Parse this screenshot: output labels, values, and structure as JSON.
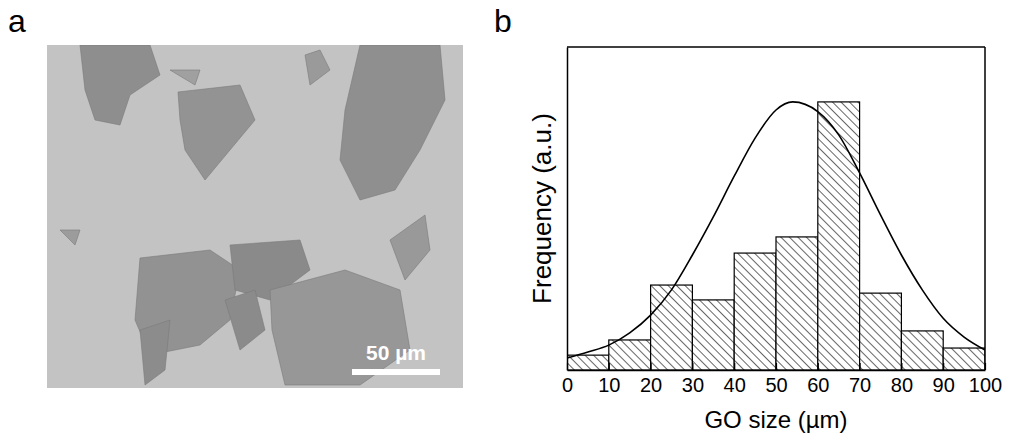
{
  "image_panel": {
    "panel_label": "a",
    "scale_bar": "50 µm"
  },
  "chart_data": {
    "type": "histogram",
    "panel_label": "b",
    "xlabel": "GO size (µm)",
    "ylabel": "Frequency (a.u.)",
    "bins": [
      0,
      10,
      20,
      30,
      40,
      50,
      60,
      70,
      80,
      90,
      100
    ],
    "values": [
      4.6,
      9.3,
      26.3,
      21.7,
      36.2,
      41.2,
      83,
      23.8,
      12.1,
      6.8
    ],
    "color": "#000000",
    "series": [
      {
        "type": "line",
        "color": "#000000",
        "x": [
          0,
          5,
          10,
          15,
          20,
          25,
          30,
          35,
          40,
          45,
          50,
          54,
          60,
          65,
          70,
          75,
          80,
          85,
          90,
          95,
          100
        ],
        "values": [
          3.7,
          5.6,
          7.7,
          11.5,
          17,
          24.8,
          35.6,
          47.4,
          60,
          71.8,
          80.5,
          83,
          80,
          72.8,
          61,
          48,
          35.6,
          24.8,
          16,
          10.2,
          6.2
        ]
      }
    ],
    "xlim": [
      0,
      100
    ],
    "xticks": [
      0,
      10,
      20,
      30,
      40,
      50,
      60,
      70,
      80,
      90,
      100
    ],
    "ylim": [
      0,
      100
    ],
    "yticks": [],
    "tick_labels": "x"
  }
}
